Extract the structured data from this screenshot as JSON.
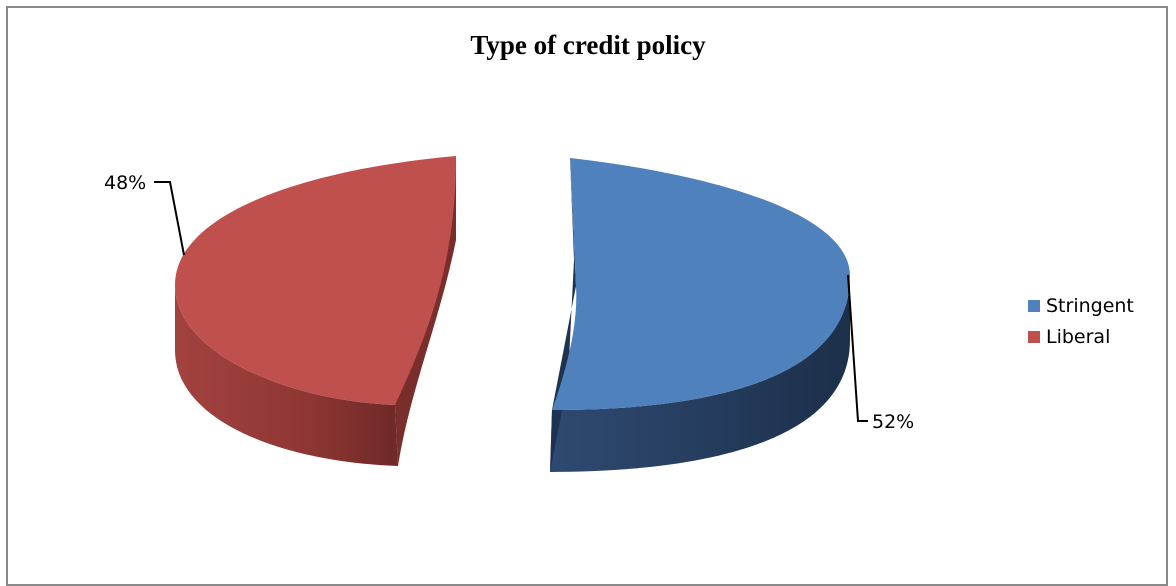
{
  "chart_data": {
    "type": "pie",
    "title": "Type of credit policy",
    "categories": [
      "Stringent",
      "Liberal"
    ],
    "values": [
      52,
      48
    ],
    "labels": [
      "52%",
      "48%"
    ],
    "colors": [
      "#4f81bd",
      "#c0504d"
    ],
    "legend_position": "right",
    "style": "3d-exploded"
  }
}
